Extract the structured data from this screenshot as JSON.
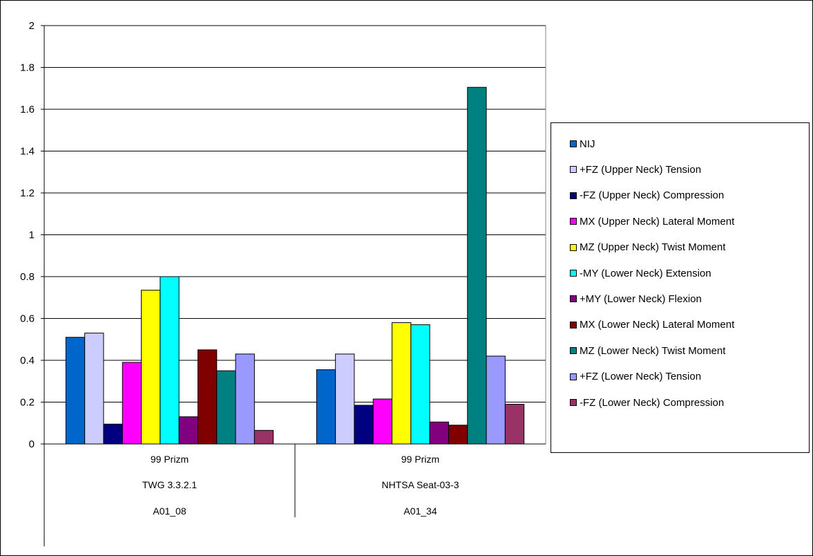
{
  "chart_data": {
    "type": "bar",
    "categories": [
      [
        "99 Prizm",
        "TWG 3.3.2.1",
        "A01_08"
      ],
      [
        "99 Prizm",
        "NHTSA Seat-03-3",
        "A01_34"
      ]
    ],
    "ylim": [
      0,
      2
    ],
    "yticks": [
      "0",
      "0.2",
      "0.4",
      "0.6",
      "0.8",
      "1",
      "1.2",
      "1.4",
      "1.6",
      "1.8",
      "2"
    ],
    "grid": true,
    "legend_position": "right",
    "series": [
      {
        "name": "NIJ",
        "color": "#0066CC",
        "values": [
          0.51,
          0.355
        ]
      },
      {
        "name": "+FZ (Upper Neck) Tension",
        "color": "#CCCCFF",
        "values": [
          0.53,
          0.43
        ]
      },
      {
        "name": "-FZ (Upper Neck) Compression",
        "color": "#000080",
        "values": [
          0.095,
          0.185
        ]
      },
      {
        "name": "MX (Upper Neck) Lateral Moment",
        "color": "#FF00FF",
        "values": [
          0.39,
          0.215
        ]
      },
      {
        "name": "MZ (Upper Neck) Twist Moment",
        "color": "#FFFF00",
        "values": [
          0.735,
          0.58
        ]
      },
      {
        "name": "-MY  (Lower Neck) Extension",
        "color": "#00FFFF",
        "values": [
          0.8,
          0.57
        ]
      },
      {
        "name": "+MY (Lower Neck) Flexion",
        "color": "#800080",
        "values": [
          0.13,
          0.105
        ]
      },
      {
        "name": "MX (Lower Neck) Lateral Moment",
        "color": "#800000",
        "values": [
          0.45,
          0.09
        ]
      },
      {
        "name": "MZ (Lower Neck) Twist Moment",
        "color": "#008080",
        "values": [
          0.35,
          1.705
        ]
      },
      {
        "name": "+FZ (Lower Neck) Tension",
        "color": "#9999FF",
        "values": [
          0.43,
          0.42
        ]
      },
      {
        "name": "-FZ (Lower Neck) Compression",
        "color": "#993366",
        "values": [
          0.065,
          0.19
        ]
      }
    ]
  }
}
